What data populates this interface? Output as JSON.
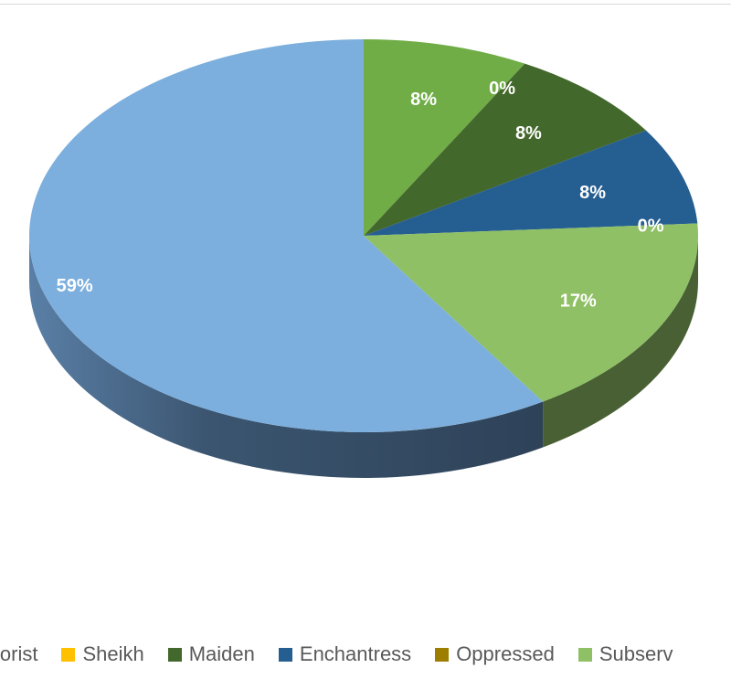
{
  "chart_data": {
    "type": "pie",
    "three_d": true,
    "start_angle_deg": 0,
    "direction": "clockwise",
    "slices": [
      {
        "name": "",
        "value": 8,
        "label": "8%",
        "color": "#70ad47"
      },
      {
        "name": "Sheikh",
        "value": 0,
        "label": "0%",
        "color": "#ffc000"
      },
      {
        "name": "Maiden",
        "value": 8,
        "label": "8%",
        "color": "#43682b"
      },
      {
        "name": "Enchantress",
        "value": 8,
        "label": "8%",
        "color": "#255e91"
      },
      {
        "name": "Oppressed",
        "value": 0,
        "label": "0%",
        "color": "#9e7e00"
      },
      {
        "name": "",
        "value": 17,
        "label": "17%",
        "color": "#8fc066"
      },
      {
        "name": "",
        "value": 59,
        "label": "59%",
        "color": "#7cafdd"
      }
    ],
    "legend": {
      "placement": "bottom",
      "entries": [
        {
          "label": "errorist",
          "color": "#2e75b6"
        },
        {
          "label": "Sheikh",
          "color": "#ffc000"
        },
        {
          "label": "Maiden",
          "color": "#43682b"
        },
        {
          "label": "Enchantress",
          "color": "#255e91"
        },
        {
          "label": "Oppressed",
          "color": "#9e7e00"
        },
        {
          "label": "Subserv",
          "color": "#8fc066"
        }
      ]
    }
  }
}
